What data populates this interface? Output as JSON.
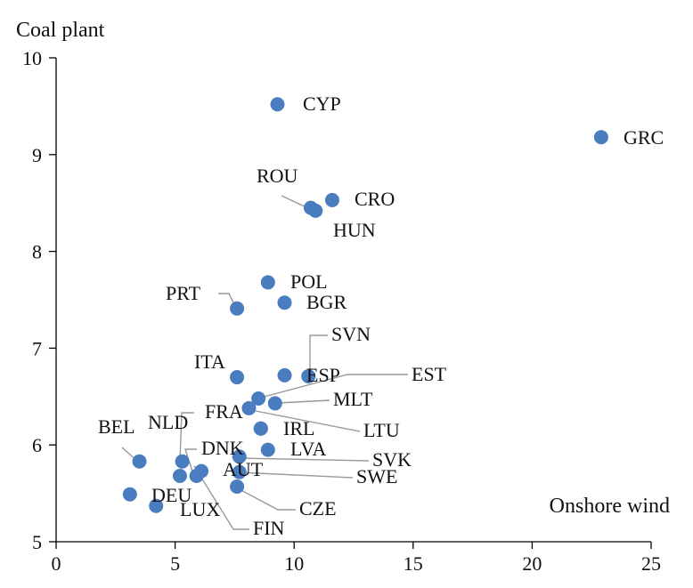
{
  "chart_data": {
    "type": "scatter",
    "title": "",
    "xlabel": "Onshore wind",
    "ylabel": "Coal plant",
    "xlim": [
      0,
      25
    ],
    "ylim": [
      5,
      10
    ],
    "xticks": [
      0,
      5,
      10,
      15,
      20,
      25
    ],
    "yticks": [
      5,
      6,
      7,
      8,
      9,
      10
    ],
    "grid": false,
    "marker_color": "#4a7dbf",
    "leader_color": "#999999",
    "points": [
      {
        "label": "CYP",
        "x": 9.3,
        "y": 9.52
      },
      {
        "label": "GRC",
        "x": 22.9,
        "y": 9.18
      },
      {
        "label": "ROU",
        "x": 10.7,
        "y": 8.45
      },
      {
        "label": "CRO",
        "x": 11.6,
        "y": 8.53
      },
      {
        "label": "HUN",
        "x": 10.9,
        "y": 8.42
      },
      {
        "label": "POL",
        "x": 8.9,
        "y": 7.68
      },
      {
        "label": "BGR",
        "x": 9.6,
        "y": 7.47
      },
      {
        "label": "PRT",
        "x": 7.6,
        "y": 7.41
      },
      {
        "label": "SVN",
        "x": 10.6,
        "y": 6.71
      },
      {
        "label": "ITA",
        "x": 7.6,
        "y": 6.7
      },
      {
        "label": "ESP",
        "x": 9.6,
        "y": 6.72
      },
      {
        "label": "EST",
        "x": 8.5,
        "y": 6.48
      },
      {
        "label": "MLT",
        "x": 9.2,
        "y": 6.43
      },
      {
        "label": "FRA",
        "x": 8.1,
        "y": 6.38
      },
      {
        "label": "LTU",
        "x": 8.6,
        "y": 6.17
      },
      {
        "label": "IRL",
        "x": 8.6,
        "y": 6.17
      },
      {
        "label": "LVA",
        "x": 8.9,
        "y": 5.95
      },
      {
        "label": "BEL",
        "x": 3.5,
        "y": 5.83
      },
      {
        "label": "NLD",
        "x": 5.3,
        "y": 5.83
      },
      {
        "label": "DNK",
        "x": 5.9,
        "y": 5.68
      },
      {
        "label": "SVK",
        "x": 7.7,
        "y": 5.88
      },
      {
        "label": "AUT",
        "x": 6.1,
        "y": 5.73
      },
      {
        "label": "SWE",
        "x": 7.7,
        "y": 5.72
      },
      {
        "label": "CZE",
        "x": 7.6,
        "y": 5.57
      },
      {
        "label": "DEU",
        "x": 3.1,
        "y": 5.49
      },
      {
        "label": "LUX",
        "x": 4.2,
        "y": 5.37
      },
      {
        "label": "FIN",
        "x": 5.2,
        "y": 5.68
      }
    ]
  }
}
